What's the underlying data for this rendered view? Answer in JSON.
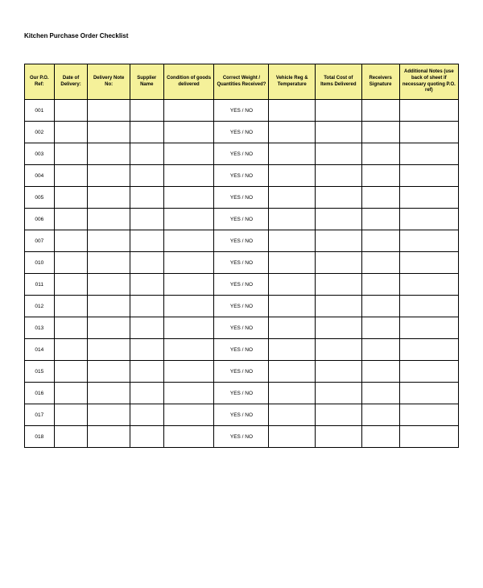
{
  "title": "Kitchen Purchase Order Checklist",
  "table": {
    "header_bg": "#f5f19a",
    "border_color": "#000000",
    "columns": [
      "Our P.O. Ref:",
      "Date of Delivery:",
      "Delivery Note No:",
      "Supplier Name",
      "Condition of goods delivered",
      "Correct Weight / Quantities Received?",
      "Vehicle Reg & Temperature",
      "Total Cost of Items Delivered",
      "Receivers Signature",
      "Additional Notes (use back of sheet if necessary quoting P.O. ref)"
    ],
    "yes_no_text": "YES  /  NO",
    "rows": [
      {
        "ref": "001"
      },
      {
        "ref": "002"
      },
      {
        "ref": "003"
      },
      {
        "ref": "004"
      },
      {
        "ref": "005"
      },
      {
        "ref": "006"
      },
      {
        "ref": "007"
      },
      {
        "ref": "010"
      },
      {
        "ref": "011"
      },
      {
        "ref": "012"
      },
      {
        "ref": "013"
      },
      {
        "ref": "014"
      },
      {
        "ref": "015"
      },
      {
        "ref": "016"
      },
      {
        "ref": "017"
      },
      {
        "ref": "018"
      }
    ]
  }
}
